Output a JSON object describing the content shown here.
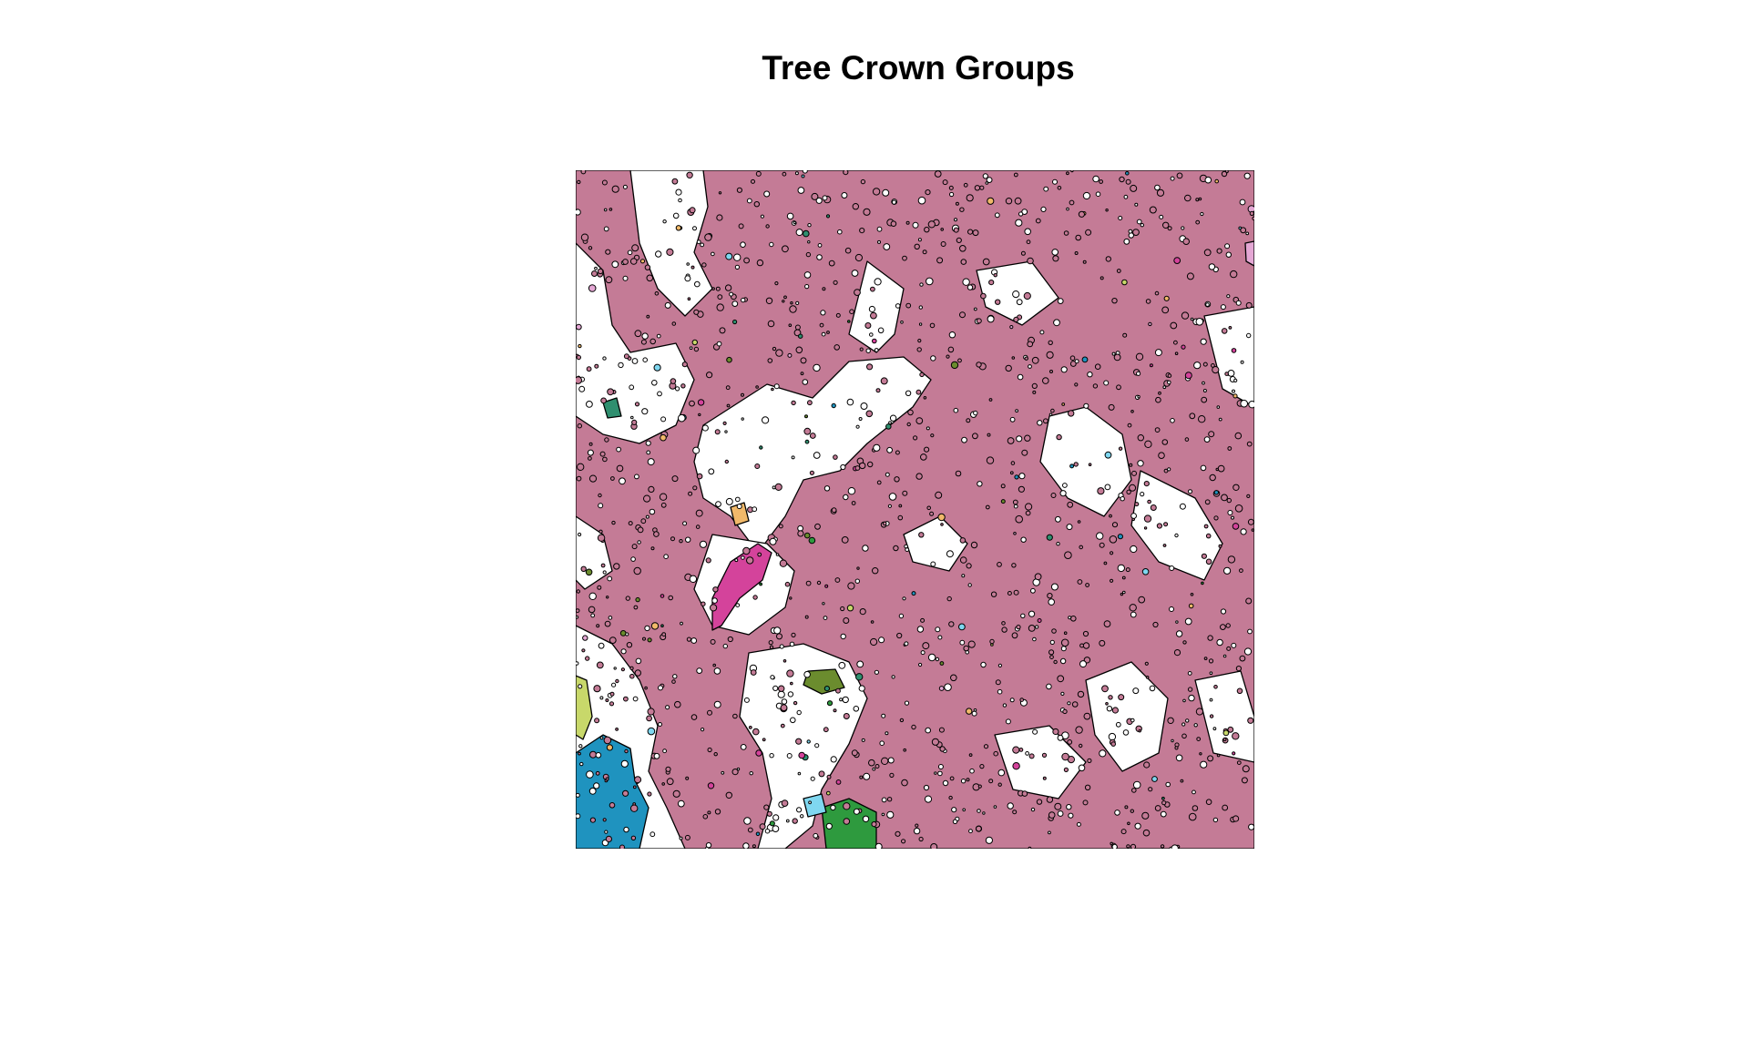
{
  "figure": {
    "title": "Tree Crown Groups"
  },
  "map": {
    "type": "segmentation-polygons",
    "background_color": "#ffffff",
    "outline_color": "#000000",
    "dominant_group_color": "#c47b96",
    "group_colors": [
      "#c47b96",
      "#d4439b",
      "#1f93bf",
      "#2e9a3e",
      "#6b8c2e",
      "#c8d86a",
      "#f1b96a",
      "#7fd7f0",
      "#e4a7d4",
      "#2f8f6f"
    ]
  }
}
